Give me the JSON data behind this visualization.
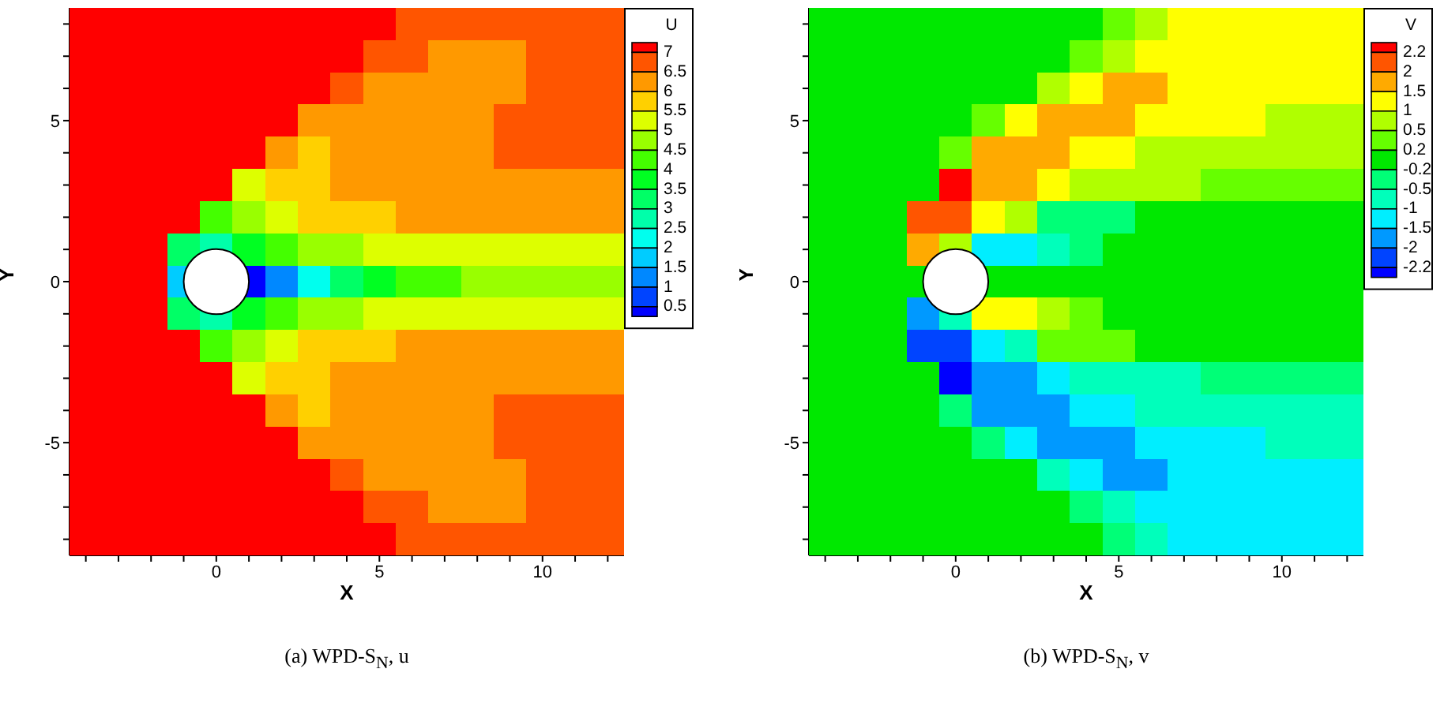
{
  "chart_data": [
    {
      "type": "heatmap",
      "title": "(a) WPD-S$_{N}$, u",
      "xlabel": "X",
      "ylabel": "Y",
      "clabel": "U",
      "categories": [
        null,
        null,
        null,
        null,
        "0",
        null,
        null,
        null,
        null,
        "5",
        null,
        null,
        null,
        null,
        "10",
        null,
        null
      ],
      "y_categories": [
        null,
        null,
        null,
        "5",
        null,
        null,
        null,
        null,
        "0",
        null,
        null,
        null,
        null,
        "-5",
        null,
        null,
        null
      ],
      "cells": [
        [
          7.1,
          7.1,
          7.1,
          7.1,
          7.1,
          7.1,
          7.1,
          7.1,
          7.1,
          7.1,
          6.75,
          6.75,
          6.75,
          6.75,
          6.75,
          6.75,
          6.75
        ],
        [
          7.1,
          7.1,
          7.1,
          7.1,
          7.1,
          7.1,
          7.1,
          7.1,
          7.1,
          6.75,
          6.75,
          6.25,
          6.25,
          6.25,
          6.75,
          6.75,
          6.75
        ],
        [
          7.1,
          7.1,
          7.1,
          7.1,
          7.1,
          7.1,
          7.1,
          7.1,
          6.75,
          6.25,
          6.25,
          6.25,
          6.25,
          6.25,
          6.75,
          6.75,
          6.75
        ],
        [
          7.1,
          7.1,
          7.1,
          7.1,
          7.1,
          7.1,
          7.1,
          6.25,
          6.25,
          6.25,
          6.25,
          6.25,
          6.25,
          6.75,
          6.75,
          6.75,
          6.75
        ],
        [
          7.1,
          7.1,
          7.1,
          7.1,
          7.1,
          7.1,
          6.25,
          5.75,
          6.25,
          6.25,
          6.25,
          6.25,
          6.25,
          6.75,
          6.75,
          6.75,
          6.75
        ],
        [
          7.1,
          7.1,
          7.1,
          7.1,
          7.1,
          5.25,
          5.75,
          5.75,
          6.25,
          6.25,
          6.25,
          6.25,
          6.25,
          6.25,
          6.25,
          6.25,
          6.25
        ],
        [
          7.1,
          7.1,
          7.1,
          7.1,
          4.25,
          4.75,
          5.25,
          5.75,
          5.75,
          5.75,
          6.25,
          6.25,
          6.25,
          6.25,
          6.25,
          6.25,
          6.25
        ],
        [
          7.1,
          7.1,
          7.1,
          3.25,
          2.75,
          3.75,
          4.25,
          4.75,
          4.75,
          5.25,
          5.25,
          5.25,
          5.25,
          5.25,
          5.25,
          5.25,
          5.25
        ],
        [
          7.1,
          7.1,
          7.1,
          1.75,
          null,
          0.4,
          1.25,
          2.25,
          3.25,
          3.75,
          4.25,
          4.25,
          4.75,
          4.75,
          4.75,
          4.75,
          4.75
        ],
        [
          7.1,
          7.1,
          7.1,
          3.25,
          2.75,
          3.75,
          4.25,
          4.75,
          4.75,
          5.25,
          5.25,
          5.25,
          5.25,
          5.25,
          5.25,
          5.25,
          5.25
        ],
        [
          7.1,
          7.1,
          7.1,
          7.1,
          4.25,
          4.75,
          5.25,
          5.75,
          5.75,
          5.75,
          6.25,
          6.25,
          6.25,
          6.25,
          6.25,
          6.25,
          6.25
        ],
        [
          7.1,
          7.1,
          7.1,
          7.1,
          7.1,
          5.25,
          5.75,
          5.75,
          6.25,
          6.25,
          6.25,
          6.25,
          6.25,
          6.25,
          6.25,
          6.25,
          6.25
        ],
        [
          7.1,
          7.1,
          7.1,
          7.1,
          7.1,
          7.1,
          6.25,
          5.75,
          6.25,
          6.25,
          6.25,
          6.25,
          6.25,
          6.75,
          6.75,
          6.75,
          6.75
        ],
        [
          7.1,
          7.1,
          7.1,
          7.1,
          7.1,
          7.1,
          7.1,
          6.25,
          6.25,
          6.25,
          6.25,
          6.25,
          6.25,
          6.75,
          6.75,
          6.75,
          6.75
        ],
        [
          7.1,
          7.1,
          7.1,
          7.1,
          7.1,
          7.1,
          7.1,
          7.1,
          6.75,
          6.25,
          6.25,
          6.25,
          6.25,
          6.25,
          6.75,
          6.75,
          6.75
        ],
        [
          7.1,
          7.1,
          7.1,
          7.1,
          7.1,
          7.1,
          7.1,
          7.1,
          7.1,
          6.75,
          6.75,
          6.25,
          6.25,
          6.25,
          6.75,
          6.75,
          6.75
        ],
        [
          7.1,
          7.1,
          7.1,
          7.1,
          7.1,
          7.1,
          7.1,
          7.1,
          7.1,
          7.1,
          6.75,
          6.75,
          6.75,
          6.75,
          6.75,
          6.75,
          6.75
        ]
      ],
      "clim": [
        0.25,
        7.25
      ],
      "cticks": [
        0.5,
        1,
        1.5,
        2,
        2.5,
        3,
        3.5,
        4,
        4.5,
        5,
        5.5,
        6,
        6.5,
        7
      ],
      "colors": [
        "#0000ff",
        "#0044ff",
        "#0088ff",
        "#00ccff",
        "#00ffee",
        "#00ffaa",
        "#00ff66",
        "#00ff22",
        "#44ff00",
        "#99ff00",
        "#ddff00",
        "#ffd000",
        "#ff9900",
        "#ff5500",
        "#ff0000"
      ]
    },
    {
      "type": "heatmap",
      "title": "(b) WPD-S$_{N}$, v",
      "xlabel": "X",
      "ylabel": "Y",
      "clabel": "V",
      "categories": [
        null,
        null,
        null,
        null,
        "0",
        null,
        null,
        null,
        null,
        "5",
        null,
        null,
        null,
        null,
        "10",
        null,
        null
      ],
      "y_categories": [
        null,
        null,
        null,
        "5",
        null,
        null,
        null,
        null,
        "0",
        null,
        null,
        null,
        null,
        "-5",
        null,
        null,
        null
      ],
      "cells": [
        [
          0,
          0,
          0,
          0,
          0,
          0,
          0,
          0,
          0,
          0.35,
          0.75,
          1.25,
          1.25,
          1.25,
          1.25,
          1.25,
          1.25
        ],
        [
          0,
          0,
          0,
          0,
          0,
          0,
          0,
          0,
          0.35,
          0.75,
          1.25,
          1.25,
          1.25,
          1.25,
          1.25,
          1.25,
          1.25
        ],
        [
          0,
          0,
          0,
          0,
          0,
          0,
          0,
          0.75,
          1.25,
          1.75,
          1.75,
          1.25,
          1.25,
          1.25,
          1.25,
          1.25,
          1.25
        ],
        [
          0,
          0,
          0,
          0,
          0,
          0.35,
          1.25,
          1.75,
          1.75,
          1.75,
          1.25,
          1.25,
          1.25,
          1.25,
          0.75,
          0.75,
          0.75
        ],
        [
          0,
          0,
          0,
          0,
          0.35,
          1.75,
          1.75,
          1.75,
          1.25,
          1.25,
          0.75,
          0.75,
          0.75,
          0.75,
          0.75,
          0.75,
          0.75
        ],
        [
          0,
          0,
          0,
          0,
          2.35,
          1.75,
          1.75,
          1.25,
          0.75,
          0.75,
          0.75,
          0.75,
          0.35,
          0.35,
          0.35,
          0.35,
          0.35
        ],
        [
          0,
          0,
          0,
          2.1,
          2.1,
          1.25,
          0.75,
          -0.35,
          -0.35,
          -0.35,
          0,
          0,
          0,
          0,
          0,
          0,
          0
        ],
        [
          0,
          0,
          0,
          1.75,
          0.75,
          -1.25,
          -1.25,
          -0.75,
          -0.35,
          0,
          0,
          0,
          0,
          0,
          0,
          0,
          0
        ],
        [
          0,
          0,
          0,
          0,
          null,
          0,
          0,
          0,
          0,
          0,
          0,
          0,
          0,
          0,
          0,
          0,
          0
        ],
        [
          0,
          0,
          0,
          -1.75,
          -0.75,
          1.25,
          1.25,
          0.75,
          0.35,
          0,
          0,
          0,
          0,
          0,
          0,
          0,
          0
        ],
        [
          0,
          0,
          0,
          -2.1,
          -2.1,
          -1.25,
          -0.75,
          0.35,
          0.35,
          0.35,
          0,
          0,
          0,
          0,
          0,
          0,
          0
        ],
        [
          0,
          0,
          0,
          0,
          -2.35,
          -1.75,
          -1.75,
          -1.25,
          -0.75,
          -0.75,
          -0.75,
          -0.75,
          -0.35,
          -0.35,
          -0.35,
          -0.35,
          -0.35
        ],
        [
          0,
          0,
          0,
          0,
          -0.35,
          -1.75,
          -1.75,
          -1.75,
          -1.25,
          -1.25,
          -0.75,
          -0.75,
          -0.75,
          -0.75,
          -0.75,
          -0.75,
          -0.75
        ],
        [
          0,
          0,
          0,
          0,
          0,
          -0.35,
          -1.25,
          -1.75,
          -1.75,
          -1.75,
          -1.25,
          -1.25,
          -1.25,
          -1.25,
          -0.75,
          -0.75,
          -0.75
        ],
        [
          0,
          0,
          0,
          0,
          0,
          0,
          0,
          -0.75,
          -1.25,
          -1.75,
          -1.75,
          -1.25,
          -1.25,
          -1.25,
          -1.25,
          -1.25,
          -1.25
        ],
        [
          0,
          0,
          0,
          0,
          0,
          0,
          0,
          0,
          -0.35,
          -0.75,
          -1.25,
          -1.25,
          -1.25,
          -1.25,
          -1.25,
          -1.25,
          -1.25
        ],
        [
          0,
          0,
          0,
          0,
          0,
          0,
          0,
          0,
          0,
          -0.35,
          -0.75,
          -1.25,
          -1.25,
          -1.25,
          -1.25,
          -1.25,
          -1.25
        ]
      ],
      "clim": [
        -2.4,
        2.4
      ],
      "cticks": [
        -2.2,
        -2,
        -1.5,
        -1,
        -0.5,
        -0.2,
        0.2,
        0.5,
        1,
        1.5,
        2,
        2.2
      ],
      "colors": [
        "#0000ff",
        "#0044ff",
        "#0099ff",
        "#00eeff",
        "#00ffbb",
        "#00ff77",
        "#00e800",
        "#66ff00",
        "#b0ff00",
        "#ffff00",
        "#ffaa00",
        "#ff5500",
        "#ff0000"
      ]
    }
  ]
}
